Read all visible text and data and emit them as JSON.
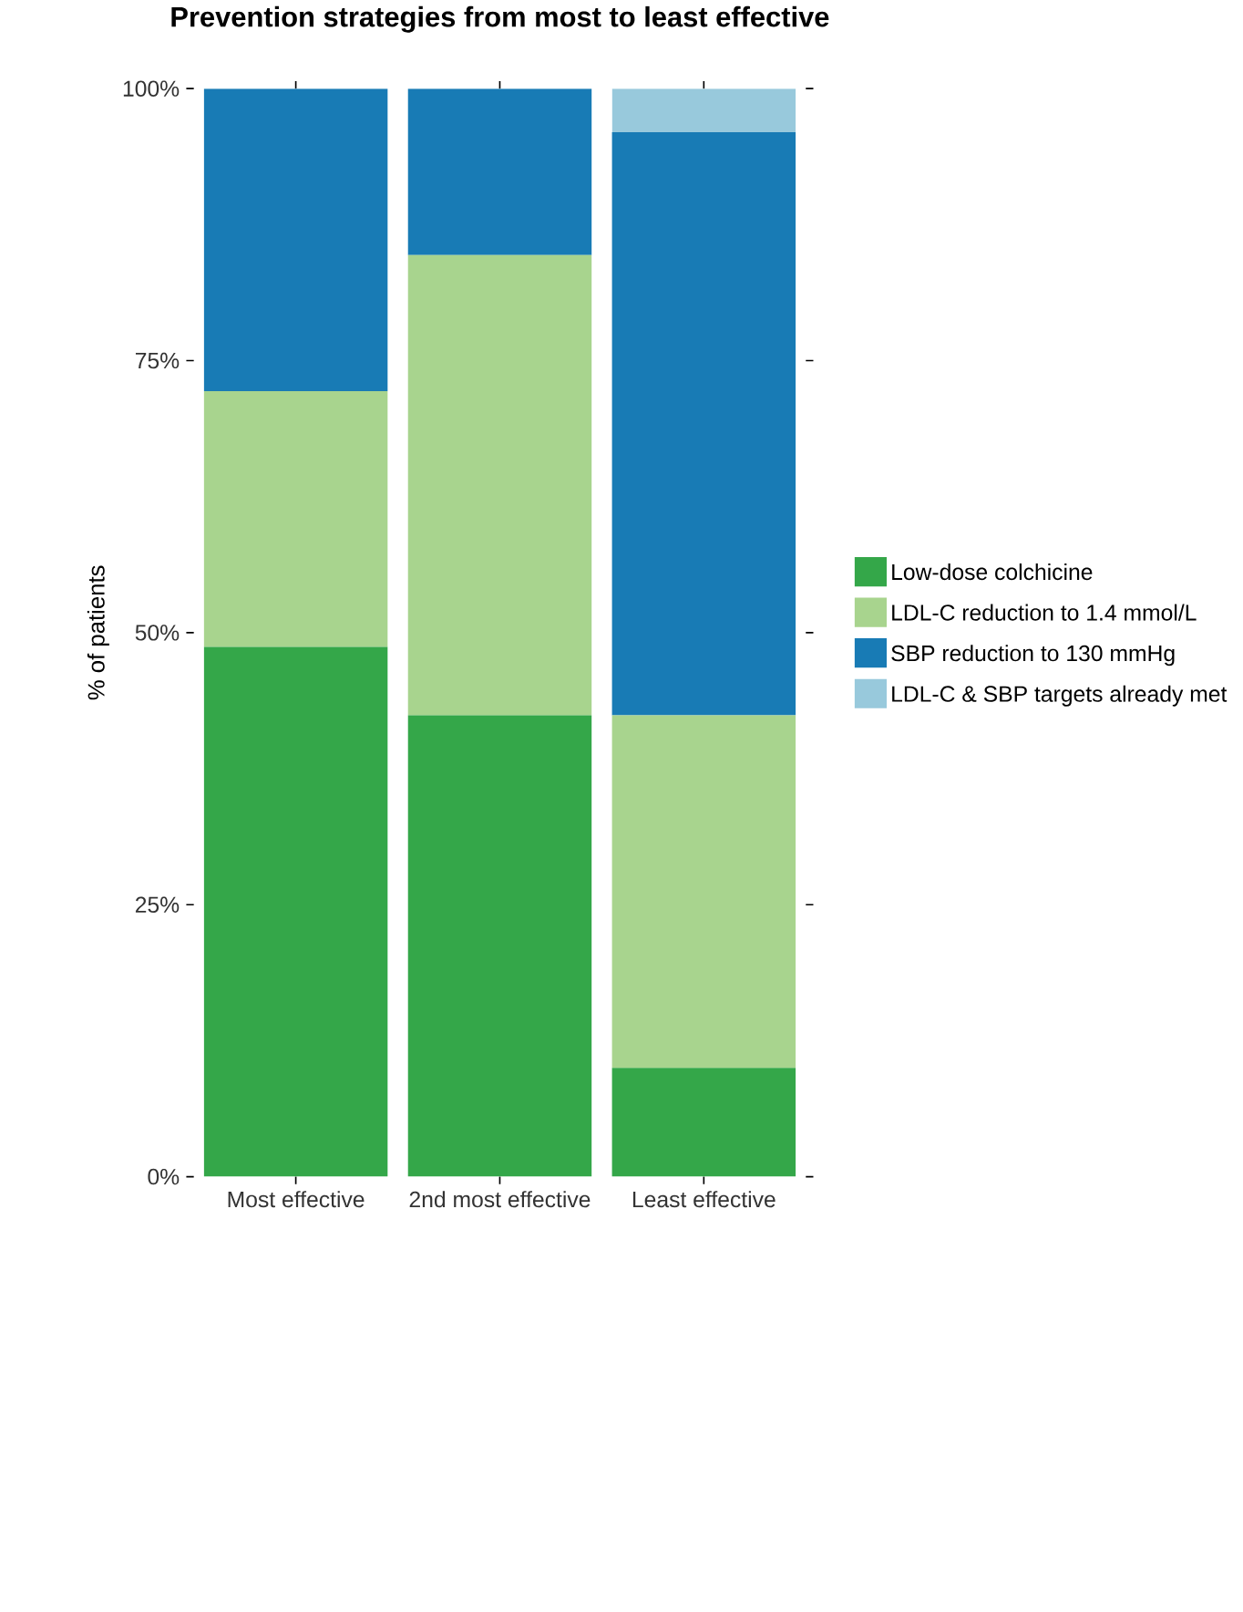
{
  "chart_data": {
    "type": "bar",
    "stacked": true,
    "title": "Prevention strategies from most to least effective",
    "ylabel": "% of patients",
    "categories": [
      "Most effective",
      "2nd most effective",
      "Least effective"
    ],
    "series": [
      {
        "name": "Low-dose colchicine",
        "color": "#34a749",
        "values": [
          48.7,
          42.4,
          10.0
        ]
      },
      {
        "name": "LDL-C reduction to 1.4 mmol/L",
        "color": "#a8d48e",
        "values": [
          23.5,
          42.3,
          32.4
        ]
      },
      {
        "name": "SBP reduction to 130 mmHg",
        "color": "#187bb5",
        "values": [
          27.8,
          15.3,
          53.6
        ]
      },
      {
        "name": "LDL-C & SBP targets already met",
        "color": "#98c9dc",
        "values": [
          0,
          0,
          4.0
        ]
      }
    ],
    "ylim": [
      0,
      100
    ],
    "yticks": [
      {
        "value": 0,
        "label": "0%"
      },
      {
        "value": 25,
        "label": "25%"
      },
      {
        "value": 50,
        "label": "50%"
      },
      {
        "value": 75,
        "label": "75%"
      },
      {
        "value": 100,
        "label": "100%"
      }
    ],
    "legend": "right",
    "grid": false
  }
}
